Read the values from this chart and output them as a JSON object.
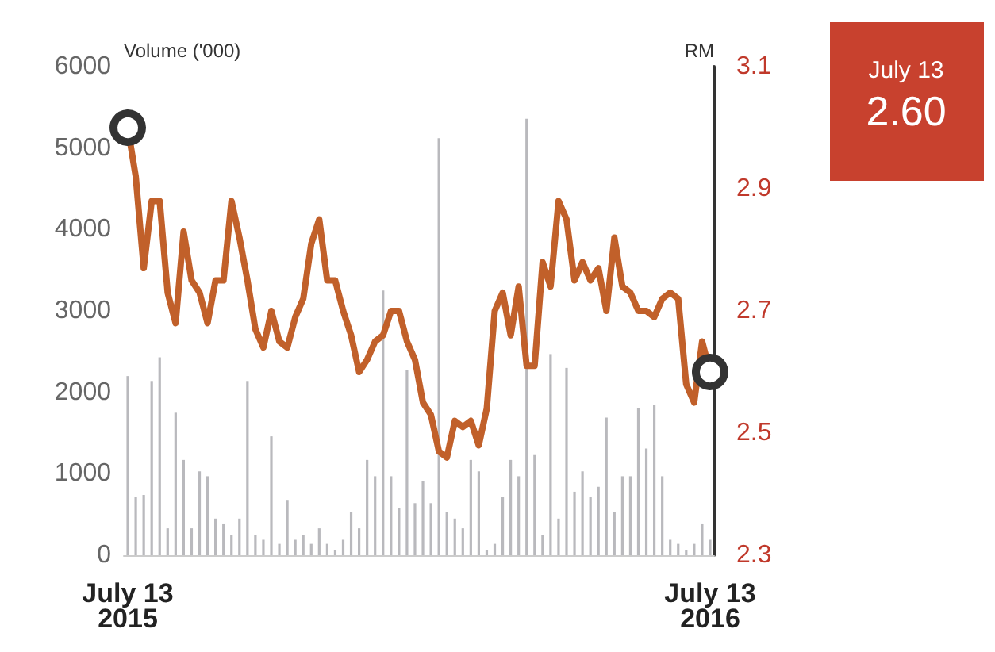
{
  "chart_data": {
    "type": "bar",
    "ylabel": "Volume ('000)",
    "y2label": "RM",
    "categories": [
      "July 13 2015",
      null,
      null,
      null,
      null,
      null,
      null,
      null,
      null,
      null,
      null,
      null,
      null,
      null,
      null,
      null,
      null,
      null,
      null,
      null,
      null,
      null,
      null,
      null,
      null,
      null,
      null,
      null,
      null,
      null,
      null,
      null,
      null,
      null,
      null,
      null,
      null,
      null,
      null,
      null,
      null,
      null,
      null,
      null,
      null,
      null,
      null,
      null,
      null,
      null,
      null,
      null,
      null,
      null,
      null,
      null,
      null,
      null,
      null,
      null,
      null,
      null,
      null,
      null,
      null,
      null,
      null,
      null,
      null,
      null,
      null,
      null,
      null,
      "July 13 2016"
    ],
    "series": [
      {
        "color": "#b9b9bd",
        "values": [
          2200,
          720,
          740,
          2140,
          2430,
          330,
          1750,
          1170,
          330,
          1030,
          970,
          450,
          390,
          250,
          450,
          2140,
          250,
          190,
          1460,
          140,
          680,
          190,
          250,
          140,
          330,
          140,
          60,
          190,
          530,
          330,
          1170,
          970,
          3250,
          970,
          580,
          2280,
          640,
          910,
          640,
          5120,
          530,
          450,
          330,
          1170,
          1030,
          60,
          140,
          720,
          1170,
          970,
          5360,
          1230,
          250,
          2470,
          450,
          2300,
          780,
          1030,
          720,
          840,
          1690,
          530,
          970,
          970,
          1810,
          1310,
          1850,
          970,
          190,
          140,
          60,
          140,
          390,
          190
        ]
      },
      {
        "type": "line",
        "axis": "y2",
        "color": "#c1602a",
        "values": [
          3.0,
          2.92,
          2.77,
          2.88,
          2.88,
          2.73,
          2.68,
          2.83,
          2.75,
          2.73,
          2.68,
          2.75,
          2.75,
          2.88,
          2.82,
          2.75,
          2.67,
          2.64,
          2.7,
          2.65,
          2.64,
          2.69,
          2.72,
          2.81,
          2.85,
          2.75,
          2.75,
          2.7,
          2.66,
          2.6,
          2.62,
          2.65,
          2.66,
          2.7,
          2.7,
          2.65,
          2.62,
          2.55,
          2.53,
          2.47,
          2.46,
          2.52,
          2.51,
          2.52,
          2.48,
          2.54,
          2.7,
          2.73,
          2.66,
          2.74,
          2.61,
          2.61,
          2.78,
          2.74,
          2.88,
          2.85,
          2.75,
          2.78,
          2.75,
          2.77,
          2.7,
          2.82,
          2.74,
          2.73,
          2.7,
          2.7,
          2.69,
          2.72,
          2.73,
          2.72,
          2.58,
          2.55,
          2.65,
          2.6
        ]
      }
    ],
    "ylim": [
      0,
      6000
    ],
    "yticks": [
      0,
      1000,
      2000,
      3000,
      4000,
      5000,
      6000
    ],
    "y2lim": [
      2.3,
      3.1
    ],
    "y2ticks": [
      2.3,
      2.5,
      2.7,
      2.9,
      3.1
    ],
    "annotations": [
      "July 13",
      "2.60"
    ],
    "grid": false
  }
}
